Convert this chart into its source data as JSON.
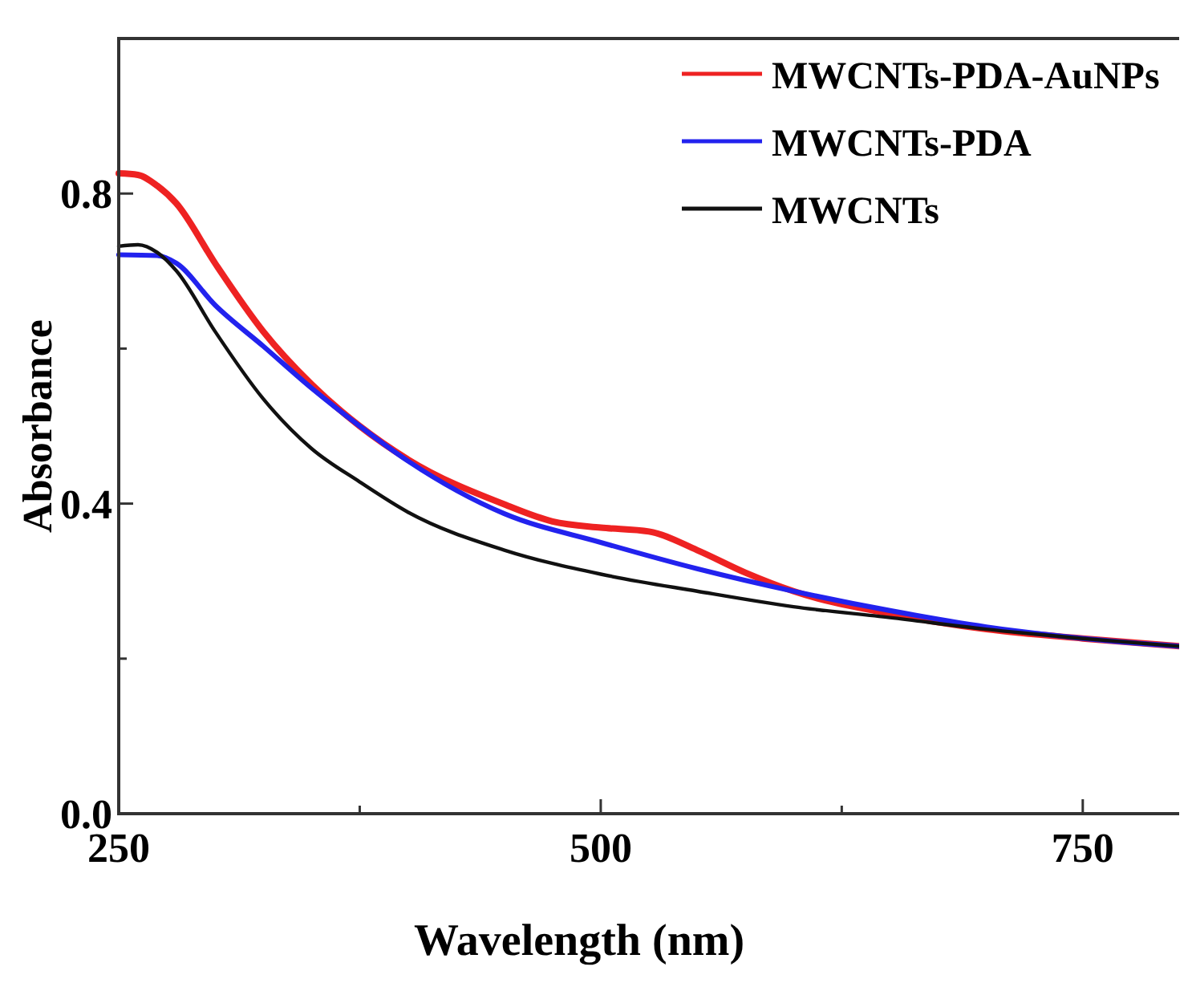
{
  "chart_data": {
    "type": "line",
    "xlabel": "Wavelength (nm)",
    "ylabel": "Absorbance",
    "xlim": [
      250,
      800
    ],
    "ylim": [
      0,
      1.0
    ],
    "xticks": [
      250,
      {
        "value": 375,
        "label": null
      },
      500,
      {
        "value": 625,
        "label": null
      },
      750
    ],
    "yticks": [
      "0.0",
      {
        "value": 0.2,
        "label": null
      },
      0.4,
      {
        "value": 0.6,
        "label": null
      },
      0.8
    ],
    "legend": "top right",
    "grid": false,
    "marker": "none",
    "line_style": "solid",
    "series": [
      {
        "name": "MWCNTs-PDA-AuNPs",
        "color": "#ee2222",
        "x": [
          250,
          260,
          270,
          280,
          300,
          325,
          350,
          375,
          400,
          450,
          475,
          500,
          525,
          550,
          575,
          600,
          650,
          700,
          750,
          800
        ],
        "values": [
          0.826,
          0.824,
          0.81,
          0.787,
          0.71,
          0.622,
          0.554,
          0.5,
          0.457,
          0.399,
          0.377,
          0.369,
          0.364,
          0.34,
          0.311,
          0.287,
          0.258,
          0.238,
          0.226,
          0.216
        ]
      },
      {
        "name": "MWCNTs-PDA",
        "color": "#2222ee",
        "x": [
          250,
          270,
          280,
          300,
          325,
          350,
          375,
          400,
          450,
          500,
          550,
          600,
          650,
          700,
          750,
          800
        ],
        "values": [
          0.721,
          0.72,
          0.71,
          0.656,
          0.603,
          0.549,
          0.5,
          0.455,
          0.387,
          0.35,
          0.316,
          0.287,
          0.262,
          0.241,
          0.226,
          0.216
        ]
      },
      {
        "name": "MWCNTs",
        "color": "#111111",
        "x": [
          250,
          260,
          270,
          280,
          300,
          325,
          350,
          375,
          400,
          450,
          500,
          550,
          600,
          650,
          700,
          750,
          800
        ],
        "values": [
          0.732,
          0.734,
          0.724,
          0.7,
          0.622,
          0.535,
          0.471,
          0.428,
          0.389,
          0.34,
          0.309,
          0.287,
          0.267,
          0.253,
          0.238,
          0.226,
          0.216
        ]
      }
    ]
  }
}
